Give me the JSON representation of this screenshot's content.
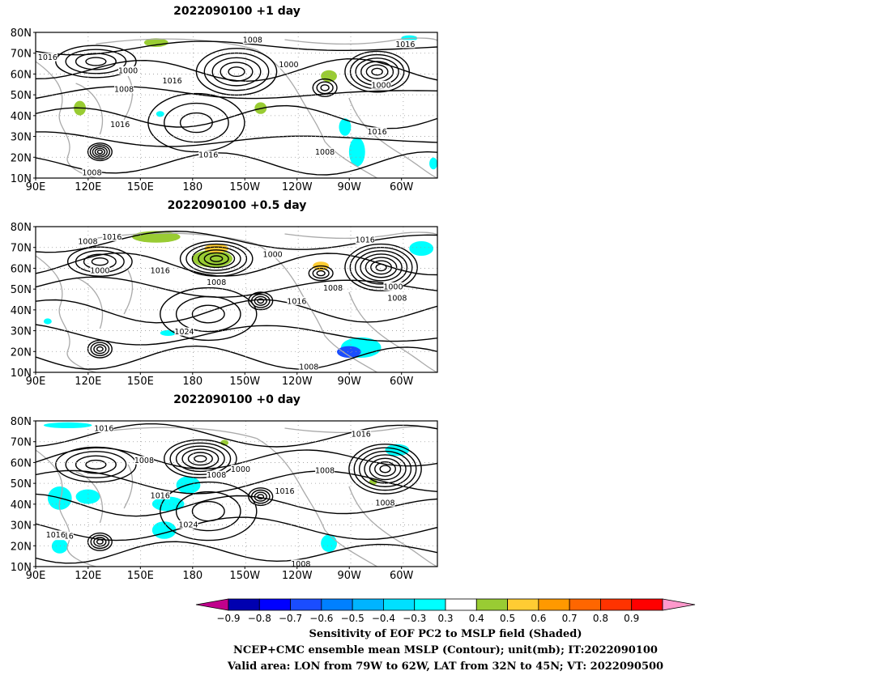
{
  "panels": [
    {
      "title": "2022090100  +1 day",
      "contour_labels": [
        "1008",
        "1016",
        "1000",
        "1016",
        "1008",
        "1000",
        "1016",
        "1016",
        "1000",
        "1016",
        "1016",
        "1008",
        "1008"
      ]
    },
    {
      "title": "2022090100  +0.5 day",
      "contour_labels": [
        "1008",
        "1016",
        "1000",
        "1016",
        "1008",
        "1000",
        "1016",
        "1008",
        "1000",
        "1008",
        "1016",
        "1024",
        "1008"
      ]
    },
    {
      "title": "2022090100  +0 day",
      "contour_labels": [
        "1016",
        "1008",
        "1008",
        "1000",
        "1016",
        "1016",
        "1016",
        "1008",
        "1016",
        "1024",
        "1008",
        "1016",
        "1008"
      ]
    }
  ],
  "map": {
    "lat_labels": [
      "80N",
      "70N",
      "60N",
      "50N",
      "40N",
      "30N",
      "20N",
      "10N"
    ],
    "lon_labels": [
      "90E",
      "120E",
      "150E",
      "180",
      "150W",
      "120W",
      "90W",
      "60W"
    ]
  },
  "colorbar": {
    "tick_labels": [
      "-0.9",
      "-0.8",
      "-0.7",
      "-0.6",
      "-0.5",
      "-0.4",
      "-0.3",
      "0.3",
      "0.4",
      "0.5",
      "0.6",
      "0.7",
      "0.8",
      "0.9"
    ],
    "colors": [
      "#c0008c",
      "#0000b0",
      "#0000ff",
      "#1a4dff",
      "#0080ff",
      "#00b4ff",
      "#00e0ff",
      "#00ffff",
      "#ffffff",
      "#99cc33",
      "#ffcc33",
      "#ff9900",
      "#ff6600",
      "#ff3300",
      "#ff0000",
      "#ff99cc"
    ]
  },
  "caption": {
    "line1": "Sensitivity of EOF PC2 to MSLP field (Shaded)",
    "line2": "NCEP+CMC ensemble mean MSLP (Contour); unit(mb); IT:2022090100",
    "line3": "Valid area: LON from 79W to 62W, LAT from 32N to 45N; VT: 2022090500"
  }
}
